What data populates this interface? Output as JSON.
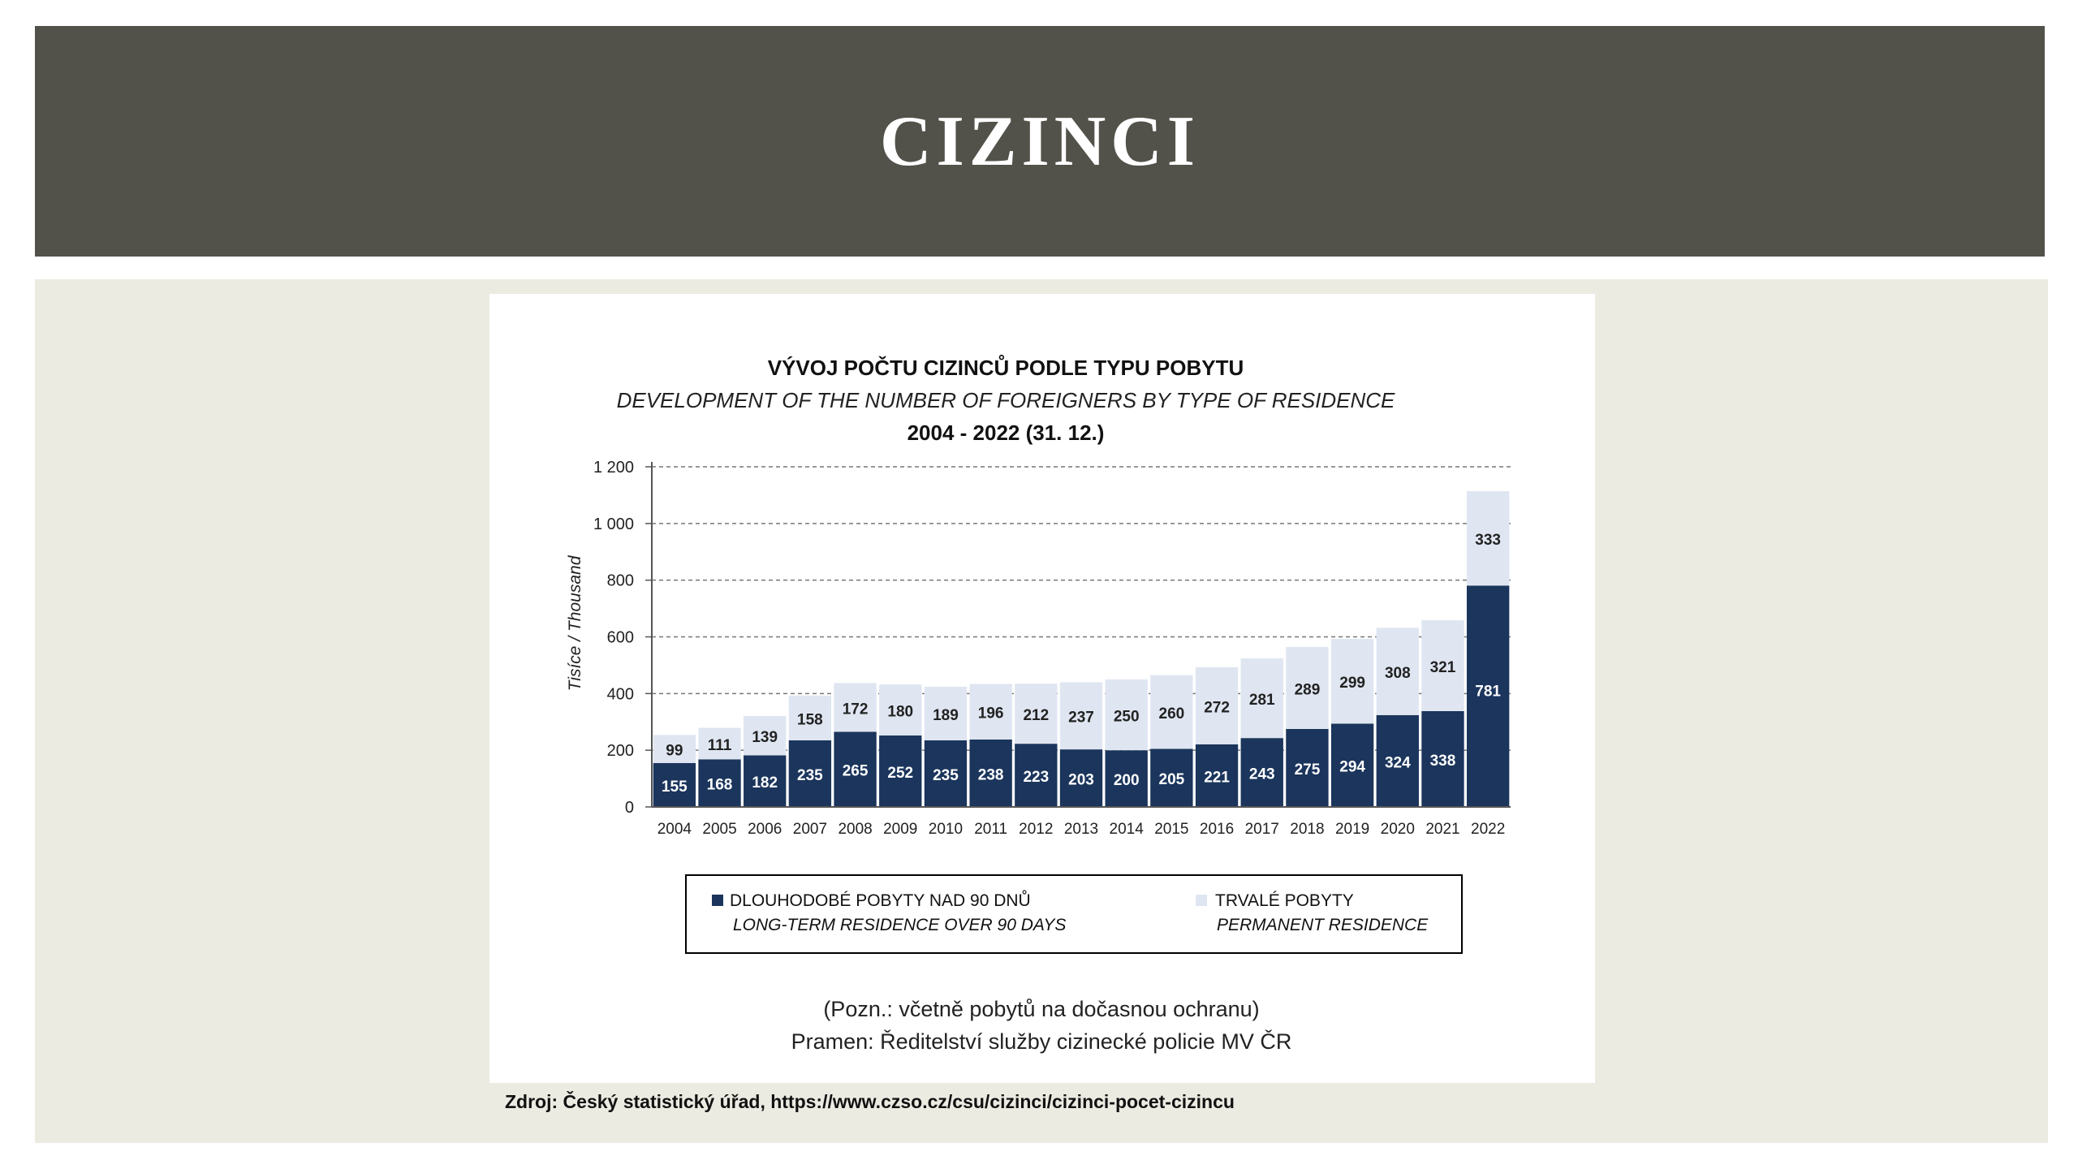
{
  "slide": {
    "title": "CIZINCI",
    "source": "Zdroj: Český statistický úřad, https://www.czso.cz/csu/cizinci/cizinci-pocet-cizincu"
  },
  "chart_data": {
    "type": "bar",
    "stacked": true,
    "title": "VÝVOJ POČTU CIZINCŮ PODLE TYPU POBYTU",
    "subtitle": "DEVELOPMENT OF THE NUMBER OF FOREIGNERS BY TYPE OF RESIDENCE",
    "period": "2004 - 2022 (31. 12.)",
    "ylabel": "Tisíce / Thousand",
    "ylim": [
      0,
      1200
    ],
    "yticks": [
      "0",
      "200",
      "400",
      "600",
      "800",
      "1 000",
      "1 200"
    ],
    "categories": [
      "2004",
      "2005",
      "2006",
      "2007",
      "2008",
      "2009",
      "2010",
      "2011",
      "2012",
      "2013",
      "2014",
      "2015",
      "2016",
      "2017",
      "2018",
      "2019",
      "2020",
      "2021",
      "2022"
    ],
    "series": [
      {
        "name": "DLOUHODOBÉ POBYTY NAD 90 DNŮ",
        "name_en": "LONG-TERM RESIDENCE OVER 90 DAYS",
        "color": "#1b355c",
        "values": [
          155,
          168,
          182,
          235,
          265,
          252,
          235,
          238,
          223,
          203,
          200,
          205,
          221,
          243,
          275,
          294,
          324,
          338,
          781
        ]
      },
      {
        "name": "TRVALÉ POBYTY",
        "name_en": "PERMANENT RESIDENCE",
        "color": "#dfe6f1",
        "values": [
          99,
          111,
          139,
          158,
          172,
          180,
          189,
          196,
          212,
          237,
          250,
          260,
          272,
          281,
          289,
          299,
          308,
          321,
          333
        ]
      }
    ],
    "grid": true,
    "legend_position": "bottom",
    "notes": [
      "(Pozn.: včetně pobytů na dočasnou ochranu)",
      "Pramen: Ředitelství služby cizinecké policie MV ČR"
    ]
  }
}
